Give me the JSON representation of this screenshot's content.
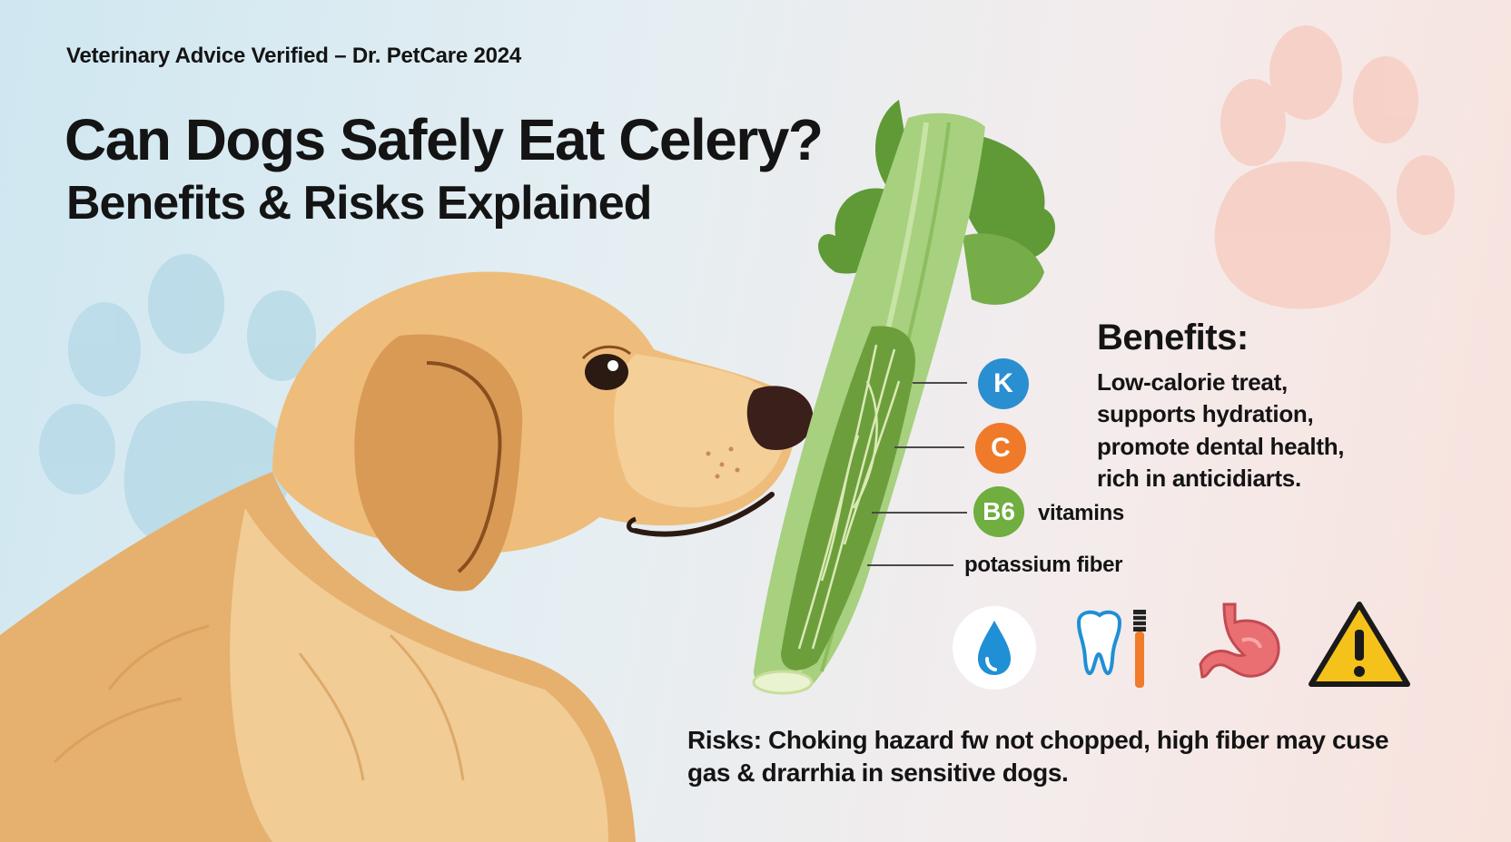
{
  "header": {
    "verified": "Veterinary Advice Verified – Dr. PetCare 2024",
    "title_line1": "Can Dogs Safely Eat Celery?",
    "title_line2": "Benefits & Risks Explained"
  },
  "benefits": {
    "heading": "Benefits:",
    "lines": [
      "Low-calorie treat,",
      "supports hydration,",
      "promote dental health,",
      "rich in anticidiarts."
    ]
  },
  "vitamins": {
    "badges": [
      {
        "label": "K",
        "color": "#2a8fd0"
      },
      {
        "label": "C",
        "color": "#ef7a2a"
      },
      {
        "label": "B6",
        "color": "#6fae3f"
      }
    ],
    "vitamins_label": "vitamins",
    "potassium_label": "potassium fiber"
  },
  "icons": [
    "water-drop-icon",
    "tooth-toothbrush-icon",
    "stomach-icon",
    "warning-icon"
  ],
  "risks": {
    "line1": "Risks: Choking hazard fw not chopped, high fiber may cuse",
    "line2": "gas & drarrhia in sensitive dogs."
  },
  "colors": {
    "celery_green": "#8fc46a",
    "dog_gold": "#e8b779",
    "warning_yellow": "#f5c21b",
    "water_blue": "#1f8fd6"
  }
}
